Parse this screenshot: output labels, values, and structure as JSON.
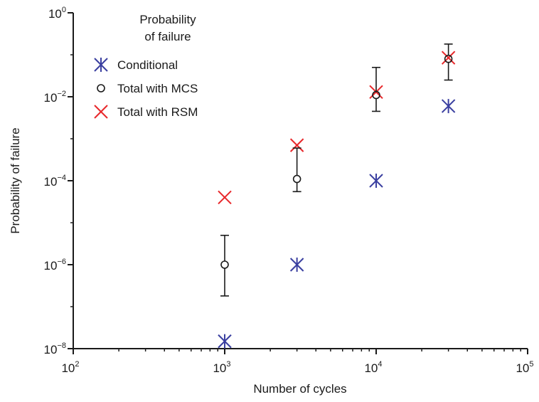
{
  "chart_data": {
    "type": "scatter",
    "xlabel": "Number of cycles",
    "ylabel": "Probability of failure",
    "xscale": "log",
    "yscale": "log",
    "xlim": [
      100,
      100000
    ],
    "ylim": [
      1e-08,
      1
    ],
    "xticks": [
      {
        "value": 100,
        "base": "10",
        "exp": "2"
      },
      {
        "value": 1000,
        "base": "10",
        "exp": "3"
      },
      {
        "value": 10000,
        "base": "10",
        "exp": "4"
      },
      {
        "value": 100000,
        "base": "10",
        "exp": "5"
      }
    ],
    "yticks": [
      {
        "value": 1e-08,
        "base": "10",
        "exp": "−8"
      },
      {
        "value": 1e-06,
        "base": "10",
        "exp": "−6"
      },
      {
        "value": 0.0001,
        "base": "10",
        "exp": "−4"
      },
      {
        "value": 0.01,
        "base": "10",
        "exp": "−2"
      },
      {
        "value": 1,
        "base": "10",
        "exp": "0"
      }
    ],
    "legend": {
      "title_lines": [
        "Probability",
        "of failure"
      ],
      "placement": "top-left"
    },
    "series": [
      {
        "name": "Conditional",
        "marker": "asterisk",
        "color": "#3a3fa0",
        "points": [
          {
            "x": 1000,
            "y": 1.5e-08
          },
          {
            "x": 3000,
            "y": 1e-06
          },
          {
            "x": 10000,
            "y": 0.0001
          },
          {
            "x": 30000,
            "y": 0.006
          }
        ]
      },
      {
        "name": "Total with MCS",
        "marker": "circle",
        "color": "#1a1a1a",
        "points": [
          {
            "x": 1000,
            "y": 1e-06,
            "err_low": 1.8e-07,
            "err_high": 5e-06
          },
          {
            "x": 3000,
            "y": 0.00011,
            "err_low": 5.5e-05,
            "err_high": 0.0006
          },
          {
            "x": 10000,
            "y": 0.011,
            "err_low": 0.0045,
            "err_high": 0.05
          },
          {
            "x": 30000,
            "y": 0.08,
            "err_low": 0.025,
            "err_high": 0.18
          }
        ]
      },
      {
        "name": "Total with RSM",
        "marker": "x",
        "color": "#e8282b",
        "points": [
          {
            "x": 1000,
            "y": 4e-05
          },
          {
            "x": 3000,
            "y": 0.0007
          },
          {
            "x": 10000,
            "y": 0.013
          },
          {
            "x": 30000,
            "y": 0.085
          }
        ]
      }
    ]
  }
}
